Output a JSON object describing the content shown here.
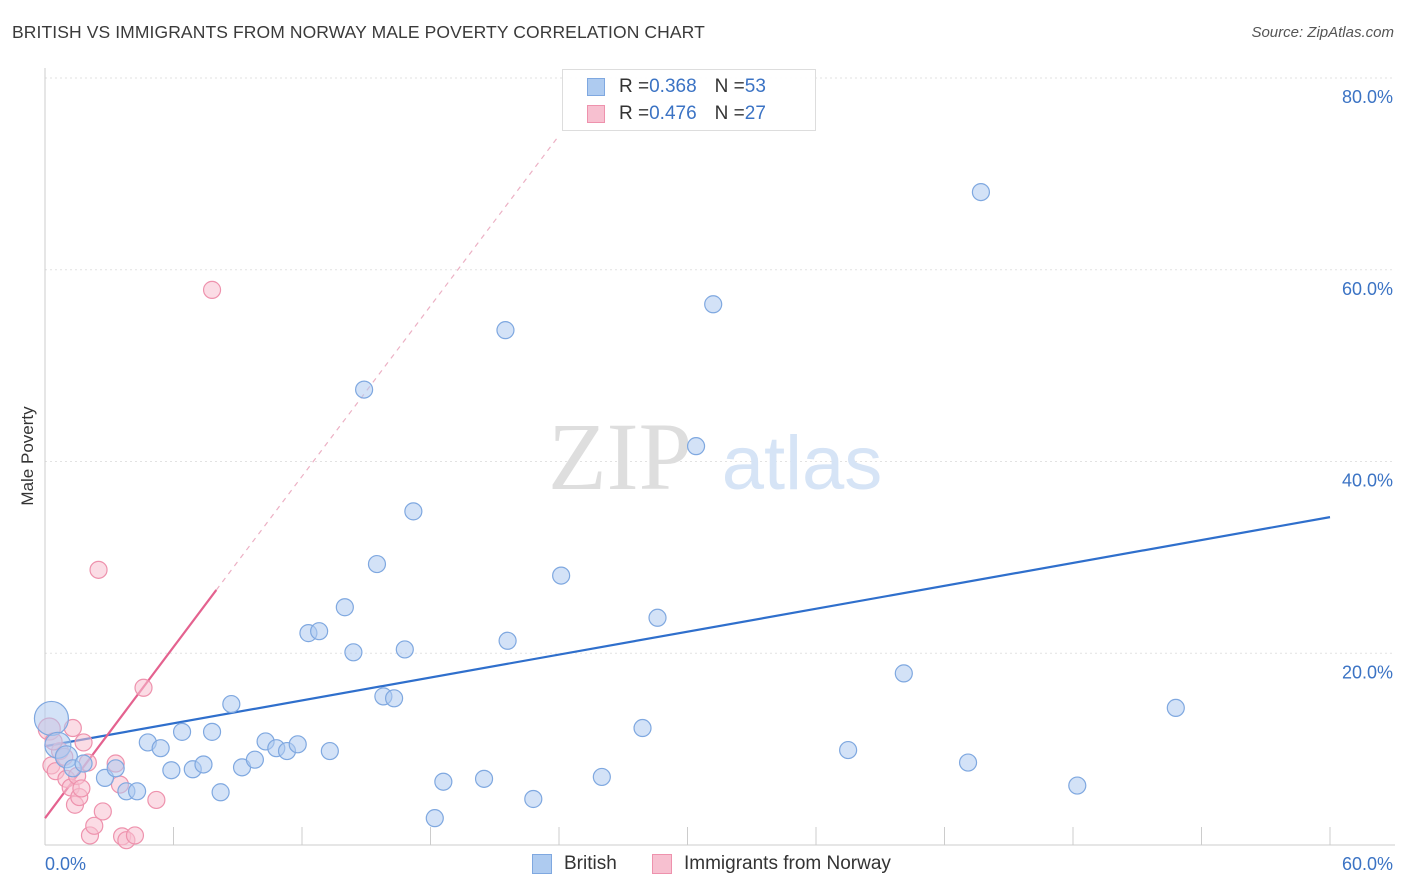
{
  "title": "BRITISH VS IMMIGRANTS FROM NORWAY MALE POVERTY CORRELATION CHART",
  "source": "Source: ZipAtlas.com",
  "watermark": {
    "zip": "ZIP",
    "atlas": "atlas"
  },
  "legend": {
    "british": {
      "r_label": "R = ",
      "r_value": "0.368",
      "n_label": "N = ",
      "n_value": "53"
    },
    "norway": {
      "r_label": "R = ",
      "r_value": "0.476",
      "n_label": "N = ",
      "n_value": "27"
    }
  },
  "colors": {
    "british_fill": "#aecbf0",
    "british_stroke": "#7fa8e0",
    "british_line": "#2f6fcc",
    "norway_fill": "#f7c0d0",
    "norway_stroke": "#ee92ad",
    "norway_line": "#e4628f",
    "axis_label": "#3b73c4",
    "grid": "#e2e2e2"
  },
  "chart_data": {
    "type": "scatter",
    "title": "BRITISH VS IMMIGRANTS FROM NORWAY MALE POVERTY CORRELATION CHART",
    "xlabel": "",
    "ylabel": "Male Poverty",
    "xlim": [
      0,
      60
    ],
    "ylim": [
      0,
      80
    ],
    "x_tick_labels": [
      "0.0%",
      "60.0%"
    ],
    "y_ticks": [
      20,
      40,
      60,
      80
    ],
    "y_tick_labels": [
      "20.0%",
      "40.0%",
      "60.0%",
      "80.0%"
    ],
    "series": [
      {
        "name": "British",
        "R": 0.368,
        "N": 53,
        "points": [
          {
            "x": 0.3,
            "y": 13.2,
            "s": "xl"
          },
          {
            "x": 0.6,
            "y": 10.4,
            "s": "l"
          },
          {
            "x": 1.0,
            "y": 9.2,
            "s": "m"
          },
          {
            "x": 1.3,
            "y": 8.0
          },
          {
            "x": 1.8,
            "y": 8.5
          },
          {
            "x": 2.8,
            "y": 7.0
          },
          {
            "x": 3.3,
            "y": 8.0
          },
          {
            "x": 3.8,
            "y": 5.6
          },
          {
            "x": 4.3,
            "y": 5.6
          },
          {
            "x": 4.8,
            "y": 10.7
          },
          {
            "x": 5.4,
            "y": 10.1
          },
          {
            "x": 5.9,
            "y": 7.8
          },
          {
            "x": 6.4,
            "y": 11.8
          },
          {
            "x": 6.9,
            "y": 7.9
          },
          {
            "x": 7.4,
            "y": 8.4
          },
          {
            "x": 7.8,
            "y": 11.8
          },
          {
            "x": 8.2,
            "y": 5.5
          },
          {
            "x": 8.7,
            "y": 14.7
          },
          {
            "x": 9.2,
            "y": 8.1
          },
          {
            "x": 9.8,
            "y": 8.9
          },
          {
            "x": 10.3,
            "y": 10.8
          },
          {
            "x": 10.8,
            "y": 10.1
          },
          {
            "x": 11.3,
            "y": 9.8
          },
          {
            "x": 11.8,
            "y": 10.5
          },
          {
            "x": 12.3,
            "y": 22.1
          },
          {
            "x": 12.8,
            "y": 22.3
          },
          {
            "x": 13.3,
            "y": 9.8
          },
          {
            "x": 14.0,
            "y": 24.8
          },
          {
            "x": 14.4,
            "y": 20.1
          },
          {
            "x": 14.9,
            "y": 47.5
          },
          {
            "x": 15.5,
            "y": 29.3
          },
          {
            "x": 15.8,
            "y": 15.5
          },
          {
            "x": 16.3,
            "y": 15.3
          },
          {
            "x": 16.8,
            "y": 20.4
          },
          {
            "x": 17.2,
            "y": 34.8
          },
          {
            "x": 18.2,
            "y": 2.8
          },
          {
            "x": 18.6,
            "y": 6.6
          },
          {
            "x": 20.5,
            "y": 6.9
          },
          {
            "x": 21.5,
            "y": 53.7
          },
          {
            "x": 21.6,
            "y": 21.3
          },
          {
            "x": 22.8,
            "y": 4.8
          },
          {
            "x": 24.1,
            "y": 28.1
          },
          {
            "x": 26.0,
            "y": 7.1
          },
          {
            "x": 27.9,
            "y": 12.2
          },
          {
            "x": 28.6,
            "y": 23.7
          },
          {
            "x": 30.4,
            "y": 41.6
          },
          {
            "x": 31.2,
            "y": 56.4
          },
          {
            "x": 37.5,
            "y": 9.9
          },
          {
            "x": 40.1,
            "y": 17.9
          },
          {
            "x": 43.7,
            "y": 68.1
          },
          {
            "x": 43.1,
            "y": 8.6
          },
          {
            "x": 48.2,
            "y": 6.2
          },
          {
            "x": 52.8,
            "y": 14.3
          }
        ],
        "trend": {
          "x0": 0,
          "y0": 10.3,
          "x1": 60,
          "y1": 34.2
        }
      },
      {
        "name": "Immigrants from Norway",
        "R": 0.476,
        "N": 27,
        "points": [
          {
            "x": 0.2,
            "y": 12.1,
            "s": "m"
          },
          {
            "x": 0.3,
            "y": 8.3
          },
          {
            "x": 0.5,
            "y": 7.7
          },
          {
            "x": 0.7,
            "y": 9.8
          },
          {
            "x": 0.9,
            "y": 9.2
          },
          {
            "x": 1.0,
            "y": 6.9
          },
          {
            "x": 1.2,
            "y": 6.0
          },
          {
            "x": 1.3,
            "y": 12.2
          },
          {
            "x": 1.4,
            "y": 4.2
          },
          {
            "x": 1.5,
            "y": 7.2
          },
          {
            "x": 1.6,
            "y": 5.0
          },
          {
            "x": 1.7,
            "y": 5.9
          },
          {
            "x": 1.8,
            "y": 10.7
          },
          {
            "x": 2.0,
            "y": 8.6
          },
          {
            "x": 2.1,
            "y": 1.0
          },
          {
            "x": 2.3,
            "y": 2.0
          },
          {
            "x": 2.5,
            "y": 28.7
          },
          {
            "x": 2.7,
            "y": 3.5
          },
          {
            "x": 3.3,
            "y": 8.5
          },
          {
            "x": 3.5,
            "y": 6.3
          },
          {
            "x": 3.6,
            "y": 0.9
          },
          {
            "x": 3.8,
            "y": 0.5
          },
          {
            "x": 4.2,
            "y": 1.0
          },
          {
            "x": 4.6,
            "y": 16.4
          },
          {
            "x": 5.2,
            "y": 4.7
          },
          {
            "x": 7.8,
            "y": 57.9
          },
          {
            "x": 0.4,
            "y": 10.8
          }
        ],
        "trend": {
          "x0": 0,
          "y0": 2.8,
          "x1": 8,
          "y1": 26.6
        },
        "trend_ext": {
          "x0": 8,
          "y0": 26.6,
          "x1": 24,
          "y1": 74.0
        }
      }
    ]
  },
  "bottom_legend": {
    "british": "British",
    "norway": "Immigrants from Norway"
  }
}
